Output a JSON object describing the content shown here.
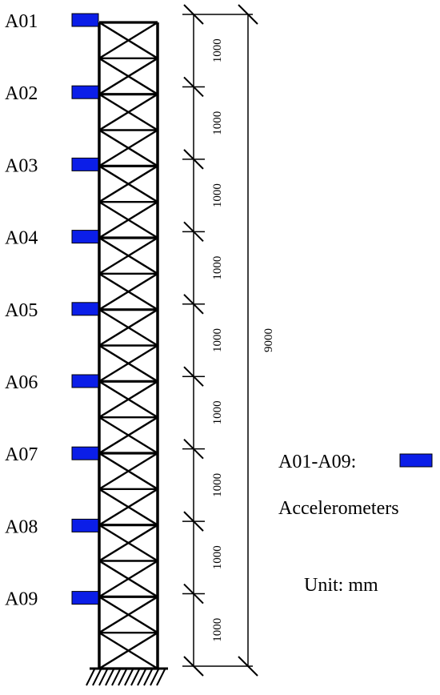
{
  "sensors": [
    {
      "id": "A01"
    },
    {
      "id": "A02"
    },
    {
      "id": "A03"
    },
    {
      "id": "A04"
    },
    {
      "id": "A05"
    },
    {
      "id": "A06"
    },
    {
      "id": "A07"
    },
    {
      "id": "A08"
    },
    {
      "id": "A09"
    }
  ],
  "segment_dimensions": [
    "1000",
    "1000",
    "1000",
    "1000",
    "1000",
    "1000",
    "1000",
    "1000",
    "1000"
  ],
  "total_dimension": "9000",
  "legend": {
    "range_label": "A01-A09:",
    "description": "Accelerometers",
    "unit_label": "Unit: mm"
  },
  "colors": {
    "sensor": "#0b1ee8",
    "line": "#000000"
  }
}
